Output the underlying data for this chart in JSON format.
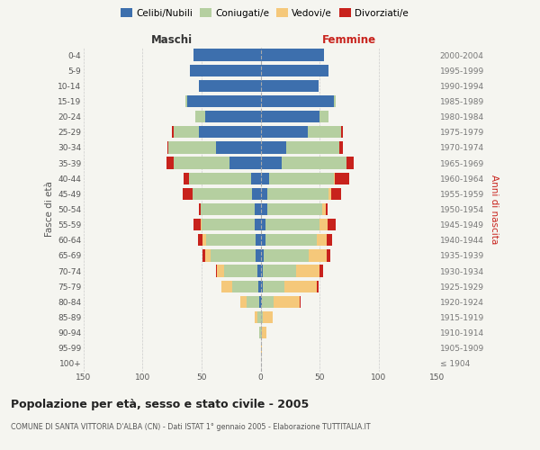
{
  "age_groups": [
    "100+",
    "95-99",
    "90-94",
    "85-89",
    "80-84",
    "75-79",
    "70-74",
    "65-69",
    "60-64",
    "55-59",
    "50-54",
    "45-49",
    "40-44",
    "35-39",
    "30-34",
    "25-29",
    "20-24",
    "15-19",
    "10-14",
    "5-9",
    "0-4"
  ],
  "birth_years": [
    "≤ 1904",
    "1905-1909",
    "1910-1914",
    "1915-1919",
    "1920-1924",
    "1925-1929",
    "1930-1934",
    "1935-1939",
    "1940-1944",
    "1945-1949",
    "1950-1954",
    "1955-1959",
    "1960-1964",
    "1965-1969",
    "1970-1974",
    "1975-1979",
    "1980-1984",
    "1985-1989",
    "1990-1994",
    "1995-1999",
    "2000-2004"
  ],
  "male": {
    "celibi": [
      0,
      0,
      0,
      0,
      1,
      2,
      3,
      4,
      4,
      5,
      5,
      7,
      8,
      26,
      38,
      52,
      47,
      62,
      52,
      60,
      57
    ],
    "coniugati": [
      0,
      0,
      1,
      3,
      11,
      22,
      28,
      38,
      42,
      45,
      46,
      51,
      53,
      48,
      40,
      22,
      8,
      2,
      0,
      0,
      0
    ],
    "vedovi": [
      0,
      0,
      0,
      2,
      5,
      9,
      6,
      5,
      3,
      1,
      0,
      0,
      0,
      0,
      0,
      0,
      0,
      0,
      0,
      0,
      0
    ],
    "divorziati": [
      0,
      0,
      0,
      0,
      0,
      0,
      1,
      2,
      4,
      6,
      1,
      8,
      4,
      6,
      1,
      1,
      0,
      0,
      0,
      0,
      0
    ]
  },
  "female": {
    "nubili": [
      0,
      0,
      0,
      0,
      1,
      2,
      2,
      3,
      4,
      4,
      6,
      6,
      7,
      18,
      22,
      40,
      50,
      62,
      49,
      58,
      54
    ],
    "coniugate": [
      0,
      0,
      1,
      2,
      10,
      18,
      28,
      38,
      44,
      46,
      46,
      52,
      55,
      55,
      45,
      28,
      8,
      2,
      0,
      0,
      0
    ],
    "vedove": [
      0,
      1,
      4,
      8,
      22,
      28,
      20,
      15,
      8,
      7,
      3,
      2,
      1,
      0,
      0,
      0,
      0,
      0,
      0,
      0,
      0
    ],
    "divorziate": [
      0,
      0,
      0,
      0,
      1,
      1,
      3,
      3,
      5,
      7,
      2,
      8,
      12,
      6,
      3,
      2,
      0,
      0,
      0,
      0,
      0
    ]
  },
  "colors": {
    "celibi": "#3d6fad",
    "coniugati": "#b5cfa0",
    "vedovi": "#f5c87a",
    "divorziati": "#c8221c"
  },
  "xlim": 150,
  "title": "Popolazione per età, sesso e stato civile - 2005",
  "subtitle": "COMUNE DI SANTA VITTORIA D'ALBA (CN) - Dati ISTAT 1° gennaio 2005 - Elaborazione TUTTITALIA.IT",
  "ylabel_left": "Fasce di età",
  "ylabel_right": "Anni di nascita",
  "xlabel_left": "Maschi",
  "xlabel_right": "Femmine",
  "bg_color": "#f5f5f0",
  "grid_color": "#cccccc"
}
